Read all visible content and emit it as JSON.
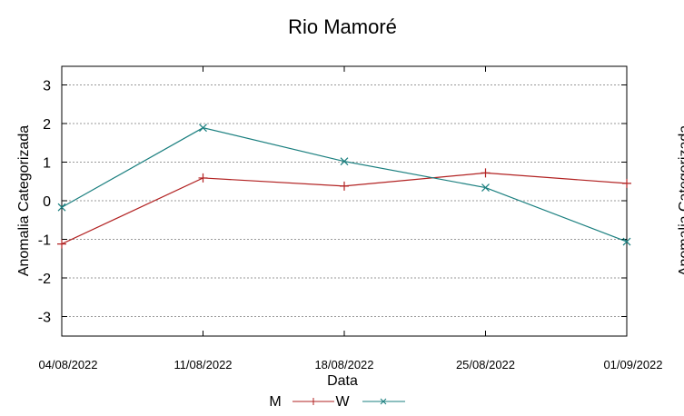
{
  "chart_data": {
    "type": "line",
    "title": "Rio Mamoré",
    "xlabel": "Data",
    "ylabel": "Anomalia Categorizada",
    "y2label": "Anomalia Categorizada",
    "categories": [
      "04/08/2022",
      "11/08/2022",
      "18/08/2022",
      "25/08/2022",
      "01/09/2022"
    ],
    "ylim": [
      -3.5,
      3.5
    ],
    "yticks": [
      3,
      2,
      1,
      0,
      -1,
      -2,
      -3
    ],
    "grid": true,
    "legend_position": "bottom",
    "series": [
      {
        "name": "M",
        "values": [
          -1.12,
          0.59,
          0.38,
          0.72,
          0.45
        ],
        "color": "#b22222",
        "marker": "plus"
      },
      {
        "name": "W",
        "values": [
          -0.17,
          1.89,
          1.02,
          0.34,
          -1.06
        ],
        "color": "#1a7f7f",
        "marker": "cross"
      }
    ]
  }
}
